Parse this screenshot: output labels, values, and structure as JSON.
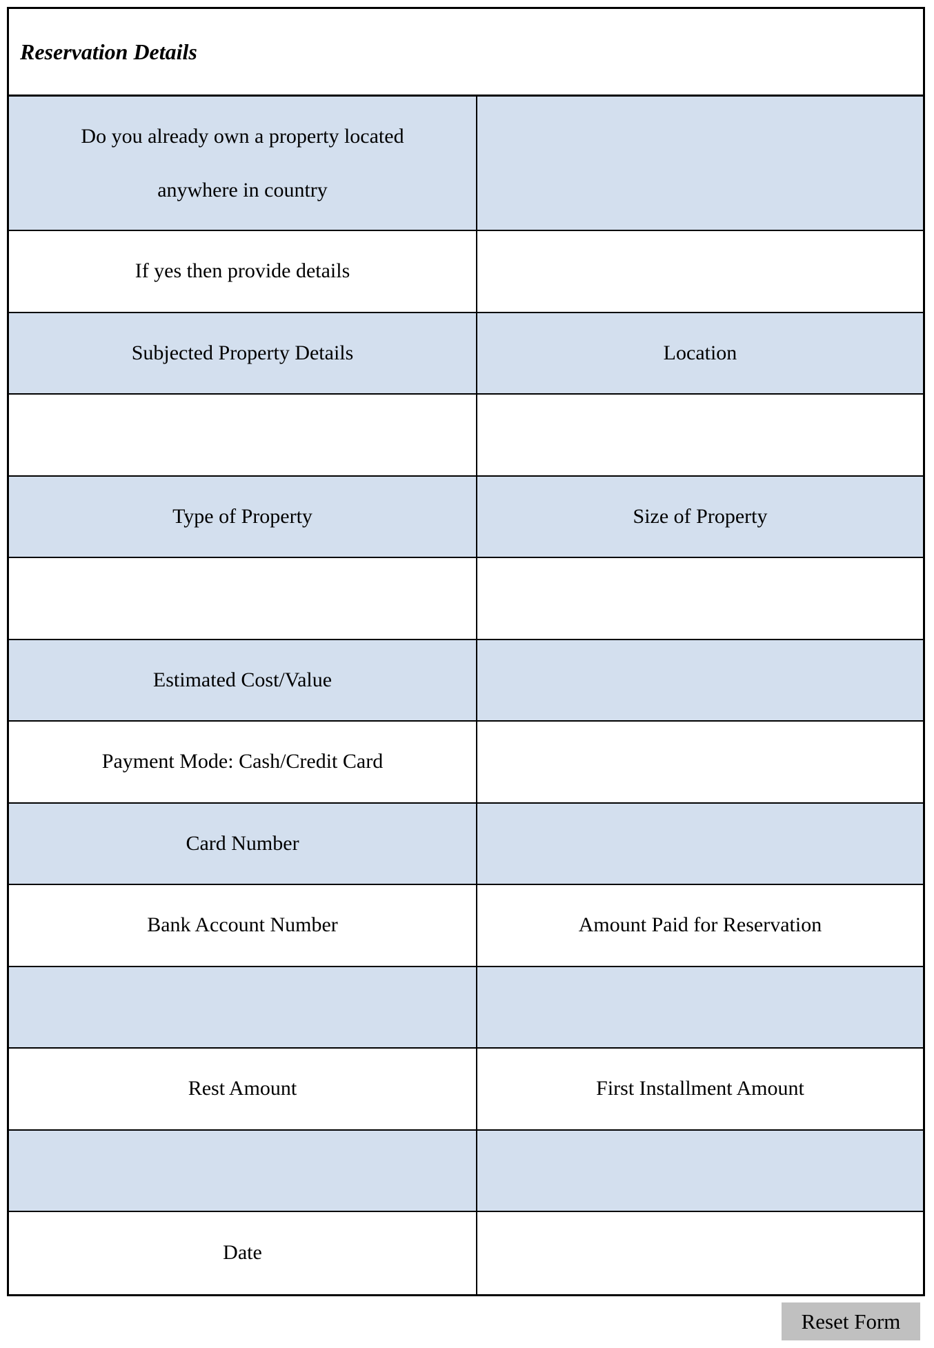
{
  "form": {
    "title": "Reservation Details",
    "fill_color": "#d3dfee",
    "rows": [
      {
        "left": "Do you already own a property located anywhere in country",
        "right": ""
      },
      {
        "left": "If yes then provide details",
        "right": ""
      },
      {
        "left": "Subjected Property Details",
        "right": "Location"
      },
      {
        "left": "",
        "right": ""
      },
      {
        "left": "Type of Property",
        "right": "Size of Property"
      },
      {
        "left": "",
        "right": ""
      },
      {
        "left": "Estimated Cost/Value",
        "right": ""
      },
      {
        "left": "Payment Mode: Cash/Credit Card",
        "right": ""
      },
      {
        "left": "Card Number",
        "right": ""
      },
      {
        "left": "Bank Account Number",
        "right": "Amount Paid for Reservation"
      },
      {
        "left": "",
        "right": ""
      },
      {
        "left": "Rest Amount",
        "right": "First Installment Amount"
      },
      {
        "left": "",
        "right": ""
      },
      {
        "left": "Date",
        "right": ""
      }
    ]
  },
  "reset_button": {
    "label": "Reset Form"
  }
}
